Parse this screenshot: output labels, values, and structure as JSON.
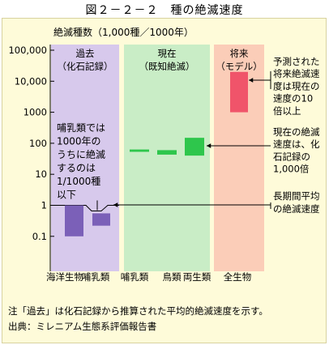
{
  "figure_title": "図２－２－２　種の絶滅速度",
  "chart_data": {
    "type": "bar",
    "scale": "log",
    "ylabel": "絶滅種数（1,000種／1000年）",
    "ylim": [
      0.01,
      100000
    ],
    "yticks": [
      {
        "value": 100000,
        "label": "100,000"
      },
      {
        "value": 10000,
        "label": "10,000"
      },
      {
        "value": 1000,
        "label": "1000"
      },
      {
        "value": 100,
        "label": "100"
      },
      {
        "value": 10,
        "label": "10"
      },
      {
        "value": 1,
        "label": "1"
      },
      {
        "value": 0.1,
        "label": "0.1"
      }
    ],
    "categories": [
      "海洋生物",
      "哺乳類",
      "哺乳類",
      "鳥類",
      "両生類",
      "全生物"
    ],
    "regions": [
      {
        "label_line1": "過去",
        "label_line2": "（化石記録）",
        "color": "#d7c9ec"
      },
      {
        "label_line1": "現在",
        "label_line2": "（既知絶滅）",
        "color": "#c9edc6"
      },
      {
        "label_line1": "将来",
        "label_line2": "（モデル）",
        "color": "#fbcdb8"
      }
    ],
    "bars": [
      {
        "category": "海洋生物",
        "low": 0.1,
        "high": 1.0,
        "color": "#7b60b8"
      },
      {
        "category": "哺乳類",
        "low": 0.22,
        "high": 0.55,
        "color": "#7b60b8"
      },
      {
        "category": "哺乳類",
        "low": 53,
        "high": 63,
        "color": "#2ec64c"
      },
      {
        "category": "鳥類",
        "low": 43,
        "high": 60,
        "color": "#2ec64c"
      },
      {
        "category": "両生類",
        "low": 40,
        "high": 150,
        "color": "#2ec64c"
      },
      {
        "category": "全生物",
        "low": 1000,
        "high": 20000,
        "color": "#f0546a"
      }
    ],
    "reference_line": 1,
    "annotations": [
      {
        "lines": [
          "哺乳類では",
          "1000年の",
          "うちに絶滅",
          "するのは",
          "1/1000種",
          "以下"
        ]
      },
      {
        "lines": [
          "予測された",
          "将来絶滅速",
          "度は現在の",
          "速度の10",
          "倍以上"
        ]
      },
      {
        "lines": [
          "現在の絶滅",
          "速度は、化",
          "石記録の",
          "1,000倍"
        ]
      },
      {
        "lines": [
          "長期間平均",
          "の絶滅速度"
        ]
      }
    ]
  },
  "notes": [
    "注「過去」は化石記録から推算された平均的絶滅速度を示す。",
    "出典：ミレニアム生態系評価報告書"
  ]
}
